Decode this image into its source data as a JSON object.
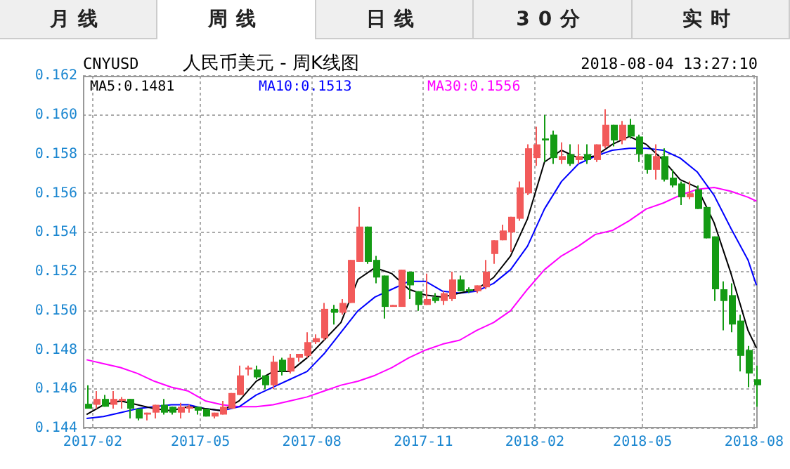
{
  "chart_data": {
    "type": "candlestick",
    "title": "人民币美元 - 周K线图",
    "annotations": [
      "CNYUSD",
      "2018-08-04 13:27:10",
      "月线",
      "周线",
      "日线",
      "30分",
      "实时"
    ],
    "x": [
      "2017-01-27",
      "2017-02-03",
      "2017-02-10",
      "2017-02-17",
      "2017-02-24",
      "2017-03-03",
      "2017-03-10",
      "2017-03-17",
      "2017-03-24",
      "2017-03-31",
      "2017-04-07",
      "2017-04-14",
      "2017-04-21",
      "2017-04-28",
      "2017-05-05",
      "2017-05-12",
      "2017-05-19",
      "2017-05-26",
      "2017-06-02",
      "2017-06-09",
      "2017-06-16",
      "2017-06-23",
      "2017-06-30",
      "2017-07-07",
      "2017-07-14",
      "2017-07-21",
      "2017-07-28",
      "2017-08-04",
      "2017-08-11",
      "2017-08-18",
      "2017-08-25",
      "2017-09-01",
      "2017-09-08",
      "2017-09-15",
      "2017-09-22",
      "2017-09-29",
      "2017-10-06",
      "2017-10-13",
      "2017-10-20",
      "2017-10-27",
      "2017-11-03",
      "2017-11-10",
      "2017-11-17",
      "2017-11-24",
      "2017-12-01",
      "2017-12-08",
      "2017-12-15",
      "2017-12-22",
      "2017-12-29",
      "2018-01-05",
      "2018-01-12",
      "2018-01-19",
      "2018-01-26",
      "2018-02-02",
      "2018-02-09",
      "2018-02-16",
      "2018-02-23",
      "2018-03-02",
      "2018-03-09",
      "2018-03-16",
      "2018-03-23",
      "2018-03-30",
      "2018-04-06",
      "2018-04-13",
      "2018-04-20",
      "2018-04-27",
      "2018-05-04",
      "2018-05-11",
      "2018-05-18",
      "2018-05-25",
      "2018-06-01",
      "2018-06-08",
      "2018-06-15",
      "2018-06-22",
      "2018-06-29",
      "2018-07-06",
      "2018-07-13",
      "2018-07-20",
      "2018-07-27",
      "2018-08-03"
    ],
    "ohlc": [
      [
        0.14525,
        0.1462,
        0.145,
        0.145
      ],
      [
        0.1452,
        0.1459,
        0.145,
        0.1455
      ],
      [
        0.1455,
        0.1457,
        0.1451,
        0.1451
      ],
      [
        0.1452,
        0.1459,
        0.145,
        0.1455
      ],
      [
        0.1454,
        0.1456,
        0.145,
        0.1455
      ],
      [
        0.1455,
        0.1455,
        0.1445,
        0.145
      ],
      [
        0.145,
        0.145,
        0.1444,
        0.1445
      ],
      [
        0.1447,
        0.1448,
        0.1444,
        0.1448
      ],
      [
        0.1448,
        0.1452,
        0.1445,
        0.1452
      ],
      [
        0.1452,
        0.1455,
        0.1447,
        0.1448
      ],
      [
        0.1451,
        0.1451,
        0.1447,
        0.1448
      ],
      [
        0.1448,
        0.1453,
        0.1445,
        0.1451
      ],
      [
        0.145,
        0.1452,
        0.1448,
        0.1451
      ],
      [
        0.1451,
        0.1451,
        0.1447,
        0.1449
      ],
      [
        0.145,
        0.145,
        0.1446,
        0.1446
      ],
      [
        0.1446,
        0.1448,
        0.1445,
        0.1448
      ],
      [
        0.1447,
        0.1454,
        0.1447,
        0.1451
      ],
      [
        0.145,
        0.1458,
        0.145,
        0.1458
      ],
      [
        0.1457,
        0.1472,
        0.1457,
        0.1467
      ],
      [
        0.147,
        0.1472,
        0.1467,
        0.1471
      ],
      [
        0.147,
        0.1472,
        0.1465,
        0.1466
      ],
      [
        0.1467,
        0.1467,
        0.146,
        0.1462
      ],
      [
        0.1462,
        0.1477,
        0.146,
        0.1474
      ],
      [
        0.1475,
        0.1476,
        0.1467,
        0.1469
      ],
      [
        0.1469,
        0.1478,
        0.1468,
        0.1476
      ],
      [
        0.1476,
        0.1478,
        0.1474,
        0.1478
      ],
      [
        0.1477,
        0.1489,
        0.1476,
        0.1484
      ],
      [
        0.1484,
        0.1488,
        0.1483,
        0.1486
      ],
      [
        0.1486,
        0.1504,
        0.1485,
        0.1501
      ],
      [
        0.1501,
        0.1503,
        0.1493,
        0.1499
      ],
      [
        0.1499,
        0.1506,
        0.1498,
        0.1504
      ],
      [
        0.1504,
        0.1526,
        0.1504,
        0.1526
      ],
      [
        0.1525,
        0.1553,
        0.1525,
        0.1543
      ],
      [
        0.1543,
        0.1543,
        0.1524,
        0.1525
      ],
      [
        0.1526,
        0.1528,
        0.1514,
        0.1517
      ],
      [
        0.1518,
        0.1518,
        0.1496,
        0.1502
      ],
      [
        0.1502,
        0.1503,
        0.1502,
        0.1503
      ],
      [
        0.1502,
        0.1521,
        0.1502,
        0.1521
      ],
      [
        0.152,
        0.152,
        0.1506,
        0.1513
      ],
      [
        0.151,
        0.151,
        0.15,
        0.1503
      ],
      [
        0.1503,
        0.1519,
        0.1503,
        0.1506
      ],
      [
        0.1507,
        0.1509,
        0.1504,
        0.1505
      ],
      [
        0.1505,
        0.151,
        0.1503,
        0.1509
      ],
      [
        0.1506,
        0.152,
        0.1505,
        0.1516
      ],
      [
        0.1516,
        0.1518,
        0.151,
        0.151
      ],
      [
        0.1511,
        0.1512,
        0.1509,
        0.151
      ],
      [
        0.151,
        0.1513,
        0.1509,
        0.1513
      ],
      [
        0.1512,
        0.1526,
        0.1511,
        0.152
      ],
      [
        0.1529,
        0.1536,
        0.1524,
        0.1536
      ],
      [
        0.1536,
        0.1544,
        0.1536,
        0.1541
      ],
      [
        0.154,
        0.1548,
        0.153,
        0.1548
      ],
      [
        0.1547,
        0.1566,
        0.1546,
        0.1563
      ],
      [
        0.156,
        0.1585,
        0.1559,
        0.1583
      ],
      [
        0.1578,
        0.1594,
        0.1574,
        0.1585
      ],
      [
        0.1588,
        0.16,
        0.1576,
        0.1587
      ],
      [
        0.159,
        0.1592,
        0.1575,
        0.1578
      ],
      [
        0.1577,
        0.1586,
        0.1575,
        0.1579
      ],
      [
        0.158,
        0.1585,
        0.1574,
        0.1575
      ],
      [
        0.1577,
        0.1585,
        0.1575,
        0.1579
      ],
      [
        0.158,
        0.1585,
        0.1575,
        0.1577
      ],
      [
        0.1577,
        0.1585,
        0.1576,
        0.1585
      ],
      [
        0.1584,
        0.1603,
        0.1583,
        0.1595
      ],
      [
        0.1595,
        0.1595,
        0.1584,
        0.1587
      ],
      [
        0.1587,
        0.1597,
        0.1585,
        0.1595
      ],
      [
        0.1595,
        0.1598,
        0.1588,
        0.1589
      ],
      [
        0.1589,
        0.159,
        0.1576,
        0.158
      ],
      [
        0.158,
        0.158,
        0.157,
        0.1572
      ],
      [
        0.1572,
        0.1585,
        0.1567,
        0.1579
      ],
      [
        0.1579,
        0.1583,
        0.1566,
        0.1567
      ],
      [
        0.1568,
        0.1572,
        0.1563,
        0.1564
      ],
      [
        0.1565,
        0.1566,
        0.1554,
        0.1558
      ],
      [
        0.1558,
        0.1566,
        0.1557,
        0.156
      ],
      [
        0.1562,
        0.1564,
        0.1552,
        0.1552
      ],
      [
        0.1553,
        0.1553,
        0.1537,
        0.1537
      ],
      [
        0.1538,
        0.1538,
        0.1505,
        0.1511
      ],
      [
        0.1511,
        0.1515,
        0.149,
        0.1505
      ],
      [
        0.1508,
        0.1514,
        0.1489,
        0.1493
      ],
      [
        0.1495,
        0.1498,
        0.1469,
        0.1477
      ],
      [
        0.148,
        0.1482,
        0.1461,
        0.1468
      ],
      [
        0.1465,
        0.1472,
        0.1451,
        0.1462
      ]
    ],
    "colors": [
      "#149b14",
      "#f25a5a",
      "#149b14",
      "#f25a5a",
      "#f25a5a",
      "#149b14",
      "#149b14",
      "#f25a5a",
      "#f25a5a",
      "#149b14",
      "#149b14",
      "#f25a5a",
      "#f25a5a",
      "#149b14",
      "#149b14",
      "#f25a5a",
      "#f25a5a",
      "#f25a5a",
      "#f25a5a",
      "#f25a5a",
      "#149b14",
      "#149b14",
      "#f25a5a",
      "#149b14",
      "#f25a5a",
      "#f25a5a",
      "#f25a5a",
      "#f25a5a",
      "#f25a5a",
      "#149b14",
      "#f25a5a",
      "#f25a5a",
      "#f25a5a",
      "#149b14",
      "#149b14",
      "#149b14",
      "#f25a5a",
      "#f25a5a",
      "#149b14",
      "#149b14",
      "#f25a5a",
      "#149b14",
      "#f25a5a",
      "#f25a5a",
      "#149b14",
      "#149b14",
      "#f25a5a",
      "#f25a5a",
      "#f25a5a",
      "#f25a5a",
      "#f25a5a",
      "#f25a5a",
      "#f25a5a",
      "#f25a5a",
      "#149b14",
      "#149b14",
      "#f25a5a",
      "#149b14",
      "#f25a5a",
      "#149b14",
      "#f25a5a",
      "#f25a5a",
      "#149b14",
      "#f25a5a",
      "#149b14",
      "#149b14",
      "#149b14",
      "#f25a5a",
      "#149b14",
      "#149b14",
      "#149b14",
      "#f25a5a",
      "#149b14",
      "#149b14",
      "#149b14",
      "#149b14",
      "#149b14",
      "#149b14",
      "#149b14",
      "#149b14"
    ],
    "series": [
      {
        "name": "MA5:0.1481",
        "type": "line",
        "color": "#000000",
        "x": [
          "2017-01-27",
          "2017-02-10",
          "2017-02-24",
          "2017-03-10",
          "2017-03-24",
          "2017-04-07",
          "2017-04-21",
          "2017-05-05",
          "2017-05-19",
          "2017-06-02",
          "2017-06-16",
          "2017-06-30",
          "2017-07-14",
          "2017-07-28",
          "2017-08-11",
          "2017-08-25",
          "2017-09-08",
          "2017-09-22",
          "2017-10-06",
          "2017-10-20",
          "2017-11-03",
          "2017-11-17",
          "2017-12-01",
          "2017-12-15",
          "2017-12-29",
          "2018-01-12",
          "2018-01-26",
          "2018-02-09",
          "2018-02-23",
          "2018-03-09",
          "2018-03-23",
          "2018-04-06",
          "2018-04-20",
          "2018-05-04",
          "2018-05-18",
          "2018-06-01",
          "2018-06-15",
          "2018-06-29",
          "2018-07-13",
          "2018-07-27",
          "2018-08-03"
        ],
        "values": [
          0.1447,
          0.1452,
          0.1454,
          0.1452,
          0.145,
          0.1449,
          0.1451,
          0.145,
          0.1449,
          0.1454,
          0.1464,
          0.1469,
          0.1469,
          0.1476,
          0.1485,
          0.1494,
          0.1516,
          0.1522,
          0.1519,
          0.1511,
          0.1508,
          0.1507,
          0.1509,
          0.1511,
          0.1517,
          0.1528,
          0.1547,
          0.1576,
          0.1582,
          0.1578,
          0.1579,
          0.1585,
          0.1589,
          0.1585,
          0.1577,
          0.1567,
          0.1563,
          0.1545,
          0.1519,
          0.149,
          0.1481
        ]
      },
      {
        "name": "MA10:0.1513",
        "type": "line",
        "color": "#0000ff",
        "x": [
          "2017-01-27",
          "2017-02-10",
          "2017-02-24",
          "2017-03-10",
          "2017-03-24",
          "2017-04-07",
          "2017-04-21",
          "2017-05-05",
          "2017-05-19",
          "2017-06-02",
          "2017-06-16",
          "2017-06-30",
          "2017-07-14",
          "2017-07-28",
          "2017-08-11",
          "2017-08-25",
          "2017-09-08",
          "2017-09-22",
          "2017-10-06",
          "2017-10-20",
          "2017-11-03",
          "2017-11-17",
          "2017-12-01",
          "2017-12-15",
          "2017-12-29",
          "2018-01-12",
          "2018-01-26",
          "2018-02-09",
          "2018-02-23",
          "2018-03-09",
          "2018-03-23",
          "2018-04-06",
          "2018-04-20",
          "2018-05-04",
          "2018-05-18",
          "2018-06-01",
          "2018-06-15",
          "2018-06-29",
          "2018-07-13",
          "2018-07-27",
          "2018-08-03"
        ],
        "values": [
          0.1445,
          0.1446,
          0.1448,
          0.145,
          0.1451,
          0.1452,
          0.1452,
          0.145,
          0.1449,
          0.1451,
          0.1457,
          0.1461,
          0.1465,
          0.1469,
          0.1478,
          0.1489,
          0.15,
          0.1507,
          0.1511,
          0.1515,
          0.1515,
          0.151,
          0.1509,
          0.151,
          0.1514,
          0.1521,
          0.1533,
          0.1552,
          0.1566,
          0.1575,
          0.1579,
          0.1582,
          0.1583,
          0.1583,
          0.1582,
          0.1578,
          0.1571,
          0.1559,
          0.1542,
          0.1526,
          0.1513
        ]
      },
      {
        "name": "MA30:0.1556",
        "type": "line",
        "color": "#ff00ff",
        "x": [
          "2017-01-27",
          "2017-02-10",
          "2017-02-24",
          "2017-03-10",
          "2017-03-24",
          "2017-04-07",
          "2017-04-21",
          "2017-05-05",
          "2017-05-19",
          "2017-06-02",
          "2017-06-16",
          "2017-06-30",
          "2017-07-14",
          "2017-07-28",
          "2017-08-11",
          "2017-08-25",
          "2017-09-08",
          "2017-09-22",
          "2017-10-06",
          "2017-10-20",
          "2017-11-03",
          "2017-11-17",
          "2017-12-01",
          "2017-12-15",
          "2017-12-29",
          "2018-01-12",
          "2018-01-26",
          "2018-02-09",
          "2018-02-23",
          "2018-03-09",
          "2018-03-23",
          "2018-04-06",
          "2018-04-20",
          "2018-05-04",
          "2018-05-18",
          "2018-06-01",
          "2018-06-15",
          "2018-06-29",
          "2018-07-13",
          "2018-07-27",
          "2018-08-03"
        ],
        "values": [
          0.1475,
          0.1473,
          0.1471,
          0.1468,
          0.1464,
          0.1461,
          0.1459,
          0.1454,
          0.1452,
          0.1451,
          0.1451,
          0.1452,
          0.1454,
          0.1456,
          0.1459,
          0.1462,
          0.1464,
          0.1467,
          0.1471,
          0.1476,
          0.148,
          0.1483,
          0.1485,
          0.149,
          0.1494,
          0.15,
          0.1511,
          0.1521,
          0.1528,
          0.1533,
          0.1539,
          0.1541,
          0.1546,
          0.1552,
          0.1555,
          0.1559,
          0.1562,
          0.1563,
          0.1561,
          0.1558,
          0.1556
        ]
      }
    ],
    "xlim": [
      "2017-01-24",
      "2018-08-04"
    ],
    "xticks": [
      "2017-02",
      "2017-05",
      "2017-08",
      "2017-11",
      "2018-02",
      "2018-05",
      "2018-08"
    ],
    "ylim": [
      0.144,
      0.162
    ],
    "yticks": [
      0.144,
      0.146,
      0.148,
      {
        "value": 0.15,
        "label": "0.150"
      },
      0.152,
      0.154,
      0.156,
      0.158,
      {
        "value": 0.16,
        "label": "0.160"
      },
      0.162
    ],
    "grid": true,
    "legend": "top left",
    "marker": "none"
  }
}
